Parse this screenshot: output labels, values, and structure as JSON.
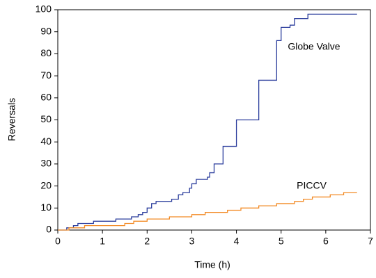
{
  "chart_data": {
    "type": "line",
    "step": "post",
    "xlabel": "Time (h)",
    "ylabel": "Reversals",
    "xlim": [
      0,
      7
    ],
    "xticks": [
      0,
      1,
      2,
      3,
      4,
      5,
      6,
      7
    ],
    "ylim": [
      0,
      100
    ],
    "yticks": [
      0,
      10,
      20,
      30,
      40,
      50,
      60,
      70,
      80,
      90,
      100
    ],
    "series": [
      {
        "name": "Globe Valve",
        "color": "#2a3c9c",
        "x": [
          0,
          0.2,
          0.35,
          0.45,
          0.8,
          1.3,
          1.65,
          1.8,
          1.9,
          2.0,
          2.1,
          2.2,
          2.55,
          2.7,
          2.8,
          2.95,
          3.0,
          3.1,
          3.35,
          3.4,
          3.5,
          3.7,
          4.0,
          4.5,
          4.9,
          5.0,
          5.2,
          5.3,
          5.6,
          6.7
        ],
        "values": [
          0,
          1,
          2,
          3,
          4,
          5,
          6,
          7,
          8,
          10,
          12,
          13,
          14,
          16,
          17,
          19,
          21,
          23,
          24,
          26,
          30,
          38,
          50,
          68,
          86,
          92,
          93,
          96,
          98,
          98
        ]
      },
      {
        "name": "PICCV",
        "color": "#f28a24",
        "x": [
          0,
          0.25,
          0.6,
          1.5,
          1.7,
          2.0,
          2.5,
          3.0,
          3.3,
          3.8,
          4.1,
          4.5,
          4.9,
          5.3,
          5.5,
          5.7,
          6.1,
          6.4,
          6.7
        ],
        "values": [
          0,
          1,
          2,
          3,
          4,
          5,
          6,
          7,
          8,
          9,
          10,
          11,
          12,
          13,
          14,
          15,
          16,
          17,
          17
        ]
      }
    ]
  }
}
